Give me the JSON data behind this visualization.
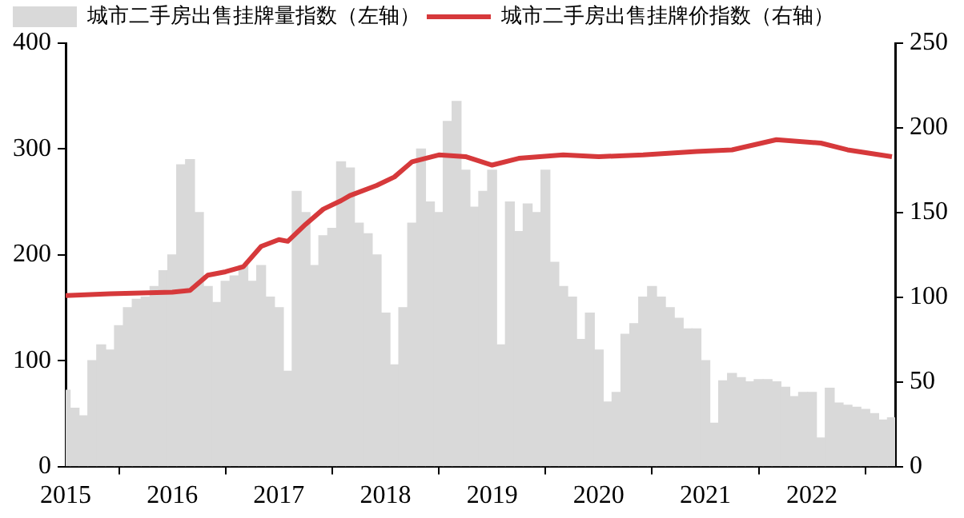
{
  "chart_data": {
    "type": "bar",
    "legend": "top left",
    "grid": false,
    "x": [
      "2015-01",
      "2015-02",
      "2015-03",
      "2015-04",
      "2015-05",
      "2015-06",
      "2015-07",
      "2015-08",
      "2015-09",
      "2015-10",
      "2015-11",
      "2015-12",
      "2016-01",
      "2016-02",
      "2016-03",
      "2016-04",
      "2016-05",
      "2016-06",
      "2016-07",
      "2016-08",
      "2016-09",
      "2016-10",
      "2016-11",
      "2016-12",
      "2017-01",
      "2017-02",
      "2017-03",
      "2017-04",
      "2017-05",
      "2017-06",
      "2017-07",
      "2017-08",
      "2017-09",
      "2017-10",
      "2017-11",
      "2017-12",
      "2018-01",
      "2018-02",
      "2018-03",
      "2018-04",
      "2018-05",
      "2018-06",
      "2018-07",
      "2018-08",
      "2018-09",
      "2018-10",
      "2018-11",
      "2018-12",
      "2019-01",
      "2019-02",
      "2019-03",
      "2019-04",
      "2019-05",
      "2019-06",
      "2019-07",
      "2019-08",
      "2019-09",
      "2019-10",
      "2019-11",
      "2019-12",
      "2020-01",
      "2020-02",
      "2020-03",
      "2020-04",
      "2020-05",
      "2020-06",
      "2020-07",
      "2020-08",
      "2020-09",
      "2020-10",
      "2020-11",
      "2020-12",
      "2021-01",
      "2021-02",
      "2021-03",
      "2021-04",
      "2021-05",
      "2021-06",
      "2021-07",
      "2021-08",
      "2021-09",
      "2021-10",
      "2021-11",
      "2021-12",
      "2022-01",
      "2022-02",
      "2022-03",
      "2022-04",
      "2022-05",
      "2022-06",
      "2022-07",
      "2022-08",
      "2022-09",
      "2022-10"
    ],
    "series": [
      {
        "name": "城市二手房出售挂牌量指数（左轴）",
        "color": "#d9d9d9",
        "values": [
          72,
          55,
          48,
          100,
          115,
          110,
          133,
          150,
          158,
          160,
          170,
          185,
          200,
          285,
          290,
          240,
          170,
          155,
          175,
          180,
          190,
          175,
          190,
          160,
          150,
          90,
          260,
          240,
          190,
          218,
          225,
          288,
          282,
          230,
          220,
          200,
          145,
          96,
          150,
          230,
          300,
          250,
          240,
          326,
          345,
          280,
          245,
          260,
          280,
          115,
          250,
          222,
          248,
          240,
          280,
          193,
          170,
          160,
          120,
          145,
          110,
          61,
          70,
          125,
          135,
          160,
          170,
          160,
          150,
          140,
          130,
          130,
          100,
          41,
          81,
          88,
          84,
          80,
          82,
          82,
          80,
          75,
          66,
          70,
          70,
          27,
          74,
          60,
          58,
          56,
          54,
          50,
          44,
          46
        ]
      },
      {
        "name": "城市二手房出售挂牌价指数（右轴）",
        "type": "line",
        "axis": "y2",
        "color": "#d6393b",
        "x": [
          "2015-01",
          "2015-06",
          "2016-01",
          "2016-03",
          "2016-05",
          "2016-07",
          "2016-09",
          "2016-11",
          "2017-01",
          "2017-02",
          "2017-04",
          "2017-06",
          "2017-08",
          "2017-09",
          "2017-12",
          "2018-02",
          "2018-04",
          "2018-07",
          "2018-10",
          "2019-01",
          "2019-04",
          "2019-09",
          "2020-01",
          "2020-06",
          "2020-12",
          "2021-04",
          "2021-09",
          "2022-02",
          "2022-05",
          "2022-10"
        ],
        "values": [
          101,
          102,
          103,
          104,
          113,
          115,
          118,
          130,
          134,
          133,
          143,
          152,
          157,
          160,
          166,
          171,
          180,
          184,
          183,
          178,
          182,
          184,
          183,
          184,
          186,
          187,
          193,
          191,
          187,
          183
        ]
      }
    ],
    "xlim": [
      "2015",
      "2022-10-12"
    ],
    "xticks": [
      "2015",
      "2016",
      "2017",
      "2018",
      "2019",
      "2020",
      "2021",
      "2022"
    ],
    "ylim": [
      0,
      400
    ],
    "yticks": [
      0,
      100,
      200,
      300,
      400
    ],
    "y2lim": [
      0,
      250
    ],
    "y2ticks": [
      0,
      50,
      100,
      150,
      200,
      250
    ]
  }
}
